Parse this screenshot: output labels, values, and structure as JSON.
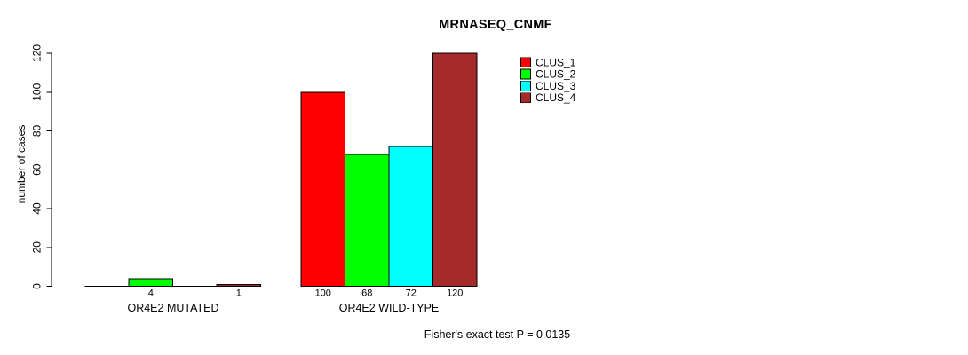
{
  "chart_data": {
    "type": "bar",
    "title": "MRNASEQ_CNMF",
    "xlabel": "",
    "ylabel": "number of cases",
    "ylim": [
      0,
      120
    ],
    "yticks": [
      0,
      20,
      40,
      60,
      80,
      100,
      120
    ],
    "grid": false,
    "legend_position": "top-right-inside",
    "annotation": "Fisher's exact test P = 0.0135",
    "categories": [
      "OR4E2 MUTATED",
      "OR4E2 WILD-TYPE"
    ],
    "series": [
      {
        "name": "CLUS_1",
        "color": "#ff0000",
        "values": [
          0,
          100
        ]
      },
      {
        "name": "CLUS_2",
        "color": "#00ff00",
        "values": [
          4,
          68
        ]
      },
      {
        "name": "CLUS_3",
        "color": "#00ffff",
        "values": [
          0,
          72
        ]
      },
      {
        "name": "CLUS_4",
        "color": "#a52a2a",
        "values": [
          1,
          120
        ]
      }
    ],
    "bar_value_labels": [
      [
        "",
        "4",
        "",
        "1"
      ],
      [
        "100",
        "68",
        "72",
        "120"
      ]
    ]
  }
}
